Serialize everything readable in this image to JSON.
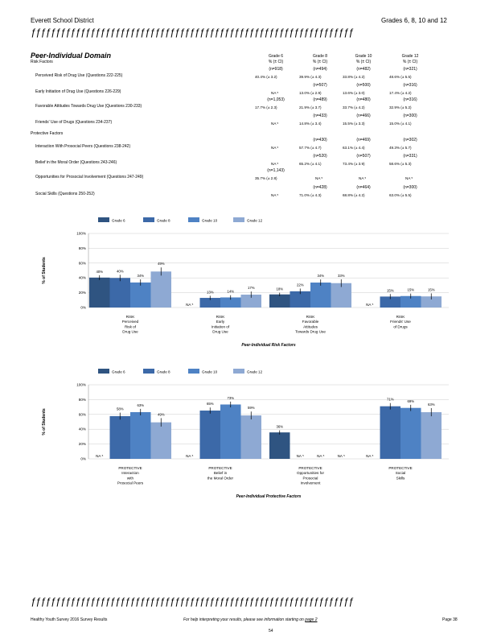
{
  "header": {
    "left": "Everett School District",
    "right": "Grades 6, 8, 10 and 12"
  },
  "rule_char": "ƒƒƒƒƒƒƒƒƒƒƒƒƒƒƒƒƒƒƒƒƒƒƒƒƒƒƒƒƒƒƒƒƒƒƒƒƒƒƒƒƒƒƒƒƒƒƒƒƒƒƒƒƒƒƒƒƒƒƒƒƒƒƒƒƒ",
  "domain_title": "Peer-Individual Domain",
  "table": {
    "risk_heading": "Risk Factors",
    "protective_heading": "Protective Factors",
    "columns": [
      {
        "grade": "Grade 6",
        "sub": "% (± CI)"
      },
      {
        "grade": "Grade 8",
        "sub": "% (± CI)"
      },
      {
        "grade": "Grade 10",
        "sub": "% (± CI)"
      },
      {
        "grade": "Grade 12",
        "sub": "% (± CI)"
      }
    ],
    "rows": [
      {
        "label": "Perceived Risk of Drug Use (Questions 222-225)",
        "n": [
          "(n=918)",
          "(n=494)",
          "(n=482)",
          "(n=321)"
        ],
        "v": [
          "40.4% (± 3.2)",
          "39.9% (± 4.3)",
          "33.8% (± 4.2)",
          "48.6% (± 5.5)"
        ]
      },
      {
        "label": "Early Initiation of Drug Use (Questions 226-229)",
        "n": [
          "",
          "(n=507)",
          "(n=500)",
          "(n=316)"
        ],
        "v": [
          "NA ⁵",
          "13.0% (± 2.9)",
          "13.6% (± 3.0)",
          "17.4% (± 4.2)"
        ]
      },
      {
        "label": "Favorable Attitudes Towards Drug Use (Questions 230-233)",
        "n": [
          "(n=1,053)",
          "(n=489)",
          "(n=480)",
          "(n=316)"
        ],
        "v": [
          "17.7% (± 2.3)",
          "21.9% (± 3.7)",
          "33.7% (± 4.2)",
          "32.9% (± 5.2)"
        ]
      },
      {
        "label": "Friends' Use of Drugs (Questions 234-237)",
        "n": [
          "",
          "(n=433)",
          "(n=466)",
          "(n=300)"
        ],
        "v": [
          "NA ⁵",
          "14.8% (± 3.4)",
          "15.5% (± 3.3)",
          "15.0% (± 4.1)"
        ]
      },
      {
        "label": "Interaction With Prosocial Peers (Questions 238-242)",
        "n": [
          "",
          "(n=430)",
          "(n=469)",
          "(n=302)"
        ],
        "v": [
          "NA ⁵",
          "57.7% (± 4.7)",
          "63.1% (± 4.4)",
          "49.3% (± 5.7)"
        ]
      },
      {
        "label": "Belief in the Moral Order (Questions 243-246)",
        "n": [
          "",
          "(n=520)",
          "(n=507)",
          "(n=331)"
        ],
        "v": [
          "NA ⁵",
          "65.2% (± 4.1)",
          "73.4% (± 3.9)",
          "58.6% (± 5.3)"
        ]
      },
      {
        "label": "Opportunities for Prosocial Involvement (Questions 247-249)",
        "n": [
          "(n=1,143)",
          "",
          "",
          ""
        ],
        "v": [
          "35.7% (± 2.8)",
          "NA ⁵",
          "NA ⁵",
          "NA ⁵"
        ]
      },
      {
        "label": "Social Skills (Questions 250-252)",
        "n": [
          "",
          "(n=428)",
          "(n=464)",
          "(n=300)"
        ],
        "v": [
          "NA ⁵",
          "71.0% (± 4.3)",
          "68.8% (± 4.2)",
          "63.0% (± 5.5)"
        ]
      }
    ]
  },
  "colors": {
    "g6": "#2f5481",
    "g8": "#3c69a8",
    "g10": "#4e82c4",
    "g12": "#8ea9d3",
    "grid": "#cccccc"
  },
  "chart_data": [
    {
      "type": "bar",
      "title": "Peer-Individual Risk Factors",
      "ylabel": "% of Students",
      "ylim": [
        0,
        100
      ],
      "yticks": [
        "0%",
        "20%",
        "40%",
        "60%",
        "80%",
        "100%"
      ],
      "legend": [
        "Grade 6",
        "Grade 8",
        "Grade 10",
        "Grade 12"
      ],
      "legend_position": "top",
      "categories": [
        [
          "RISK",
          "Perceived",
          "Risk of",
          "Drug Use"
        ],
        [
          "RISK",
          "Early",
          "Initiation of",
          "Drug Use"
        ],
        [
          "RISK",
          "Favorable",
          "Attitudes",
          "Towards Drug Use"
        ],
        [
          "RISK",
          "Friends' Use",
          "of Drugs"
        ]
      ],
      "series": [
        {
          "name": "Grade 6",
          "values": [
            40.4,
            null,
            17.7,
            null
          ],
          "ci": [
            3.2,
            null,
            2.3,
            null
          ],
          "labels": [
            "40%",
            "NA ⁵",
            "18%",
            "NA ⁵"
          ]
        },
        {
          "name": "Grade 8",
          "values": [
            39.9,
            13.0,
            21.9,
            14.8
          ],
          "ci": [
            4.3,
            2.9,
            3.7,
            3.4
          ],
          "labels": [
            "40%",
            "13%",
            "22%",
            "15%"
          ]
        },
        {
          "name": "Grade 10",
          "values": [
            33.8,
            13.6,
            33.7,
            15.5
          ],
          "ci": [
            4.2,
            3.0,
            4.2,
            3.3
          ],
          "labels": [
            "34%",
            "14%",
            "34%",
            "15%"
          ]
        },
        {
          "name": "Grade 12",
          "values": [
            48.6,
            17.4,
            32.9,
            15.0
          ],
          "ci": [
            5.5,
            4.2,
            5.2,
            4.1
          ],
          "labels": [
            "49%",
            "17%",
            "33%",
            "15%"
          ]
        }
      ]
    },
    {
      "type": "bar",
      "title": "Peer-Individual Protective Factors",
      "ylabel": "% of Students",
      "ylim": [
        0,
        100
      ],
      "yticks": [
        "0%",
        "20%",
        "40%",
        "60%",
        "80%",
        "100%"
      ],
      "legend": [
        "Grade 6",
        "Grade 8",
        "Grade 10",
        "Grade 12"
      ],
      "legend_position": "top",
      "categories": [
        [
          "PROTECTIVE",
          "Interaction",
          "with",
          "Prosocial Peers"
        ],
        [
          "PROTECTIVE",
          "Belief in",
          "the Moral Order"
        ],
        [
          "PROTECTIVE",
          "Opportunities for",
          "Prosocial",
          "Involvement"
        ],
        [
          "PROTECTIVE",
          "Social",
          "Skills"
        ]
      ],
      "series": [
        {
          "name": "Grade 6",
          "values": [
            null,
            null,
            35.7,
            null
          ],
          "ci": [
            null,
            null,
            2.8,
            null
          ],
          "labels": [
            "NA ⁵",
            "NA ⁵",
            "36%",
            "NA ⁵"
          ]
        },
        {
          "name": "Grade 8",
          "values": [
            57.7,
            65.2,
            null,
            71.0
          ],
          "ci": [
            4.7,
            4.1,
            null,
            4.3
          ],
          "labels": [
            "58%",
            "65%",
            "NA ⁵",
            "71%"
          ]
        },
        {
          "name": "Grade 10",
          "values": [
            63.1,
            73.4,
            null,
            68.8
          ],
          "ci": [
            4.4,
            3.9,
            null,
            4.2
          ],
          "labels": [
            "63%",
            "73%",
            "NA ⁵",
            "69%"
          ]
        },
        {
          "name": "Grade 12",
          "values": [
            49.3,
            58.6,
            null,
            63.0
          ],
          "ci": [
            5.7,
            5.3,
            null,
            5.5
          ],
          "labels": [
            "49%",
            "59%",
            "NA ⁵",
            "63%"
          ]
        }
      ]
    }
  ],
  "footer": {
    "left": "Healthy Youth Survey 2016 Survey Results",
    "middle_prefix": "For help interpreting your results, please see information starting on",
    "middle_link": "page 2",
    "page": "Page 38",
    "number": "54"
  }
}
